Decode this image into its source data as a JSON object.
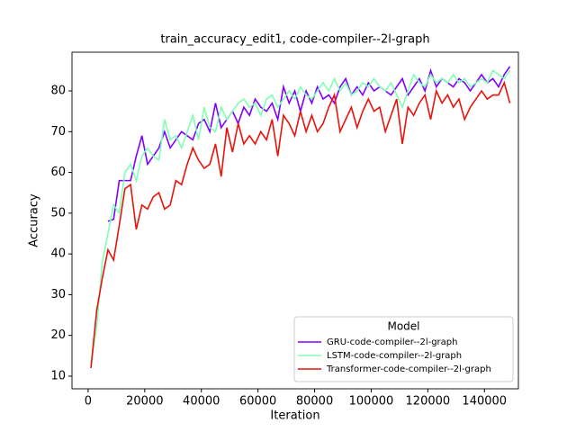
{
  "chart_data": {
    "type": "line",
    "title": "train_accuracy_edit1, code-compiler--2l-graph",
    "x_label": "Iteration",
    "y_label": "Accuracy",
    "x": [
      1000,
      3000,
      5000,
      7000,
      9000,
      11000,
      13000,
      15000,
      17000,
      19000,
      21000,
      23000,
      25000,
      27000,
      29000,
      31000,
      33000,
      35000,
      37000,
      39000,
      41000,
      43000,
      45000,
      47000,
      49000,
      51000,
      53000,
      55000,
      57000,
      59000,
      61000,
      63000,
      65000,
      67000,
      69000,
      71000,
      73000,
      75000,
      77000,
      79000,
      81000,
      83000,
      85000,
      87000,
      89000,
      91000,
      93000,
      95000,
      97000,
      99000,
      101000,
      103000,
      105000,
      107000,
      109000,
      111000,
      113000,
      115000,
      117000,
      119000,
      121000,
      123000,
      125000,
      127000,
      129000,
      131000,
      133000,
      135000,
      137000,
      139000,
      141000,
      143000,
      145000,
      147000,
      149000
    ],
    "series": [
      {
        "name": "GRU-code-compiler--2l-graph",
        "color": "#8000ff",
        "values": [
          null,
          null,
          null,
          48,
          48.5,
          58,
          58,
          58,
          64,
          69,
          62,
          64,
          66,
          70,
          66,
          68,
          70,
          69,
          68,
          72,
          73,
          70,
          77,
          71,
          73,
          75,
          72,
          76,
          74,
          78,
          76,
          75,
          77,
          73,
          81,
          77,
          80,
          75,
          80,
          77,
          81,
          78,
          79,
          77,
          81,
          83,
          79,
          81,
          79,
          82,
          80,
          81,
          80,
          79,
          81,
          83,
          79,
          81,
          83,
          80,
          85,
          81,
          83,
          82,
          81,
          83,
          82,
          80,
          82,
          84,
          82,
          83,
          81,
          84,
          86
        ]
      },
      {
        "name": "LSTM-code-compiler--2l-graph",
        "color": "#80ffb4",
        "values": [
          13,
          22,
          38,
          45,
          52,
          50,
          60,
          62,
          58,
          64,
          66,
          64,
          63,
          73,
          68,
          69,
          66,
          70,
          74,
          68,
          76,
          71,
          70,
          76,
          73,
          75,
          77,
          78,
          76,
          77,
          74,
          78,
          79,
          76,
          78,
          80,
          78,
          81,
          79,
          78,
          80,
          82,
          80,
          83,
          80,
          82,
          79,
          80,
          82,
          81,
          83,
          81,
          80,
          82,
          79,
          76,
          80,
          84,
          82,
          81,
          84,
          82,
          83,
          82,
          84,
          82,
          83,
          81,
          82,
          83,
          82,
          85,
          84,
          83,
          85
        ]
      },
      {
        "name": "Transformer-code-compiler--2l-graph",
        "color": "#e8140c",
        "values": [
          12,
          26,
          34,
          41,
          38.5,
          47,
          56,
          57,
          46,
          52,
          51,
          54,
          55,
          51,
          52,
          58,
          57,
          62,
          66,
          63,
          61,
          62,
          67,
          59,
          71,
          65,
          72,
          67,
          69,
          67,
          70,
          68,
          73,
          64,
          74,
          72,
          69,
          75,
          70,
          74,
          70,
          72,
          76,
          79,
          70,
          73,
          76,
          71,
          75,
          78,
          75,
          76,
          70,
          74,
          78,
          67,
          76,
          74,
          77,
          79,
          73,
          80,
          77,
          79,
          76,
          78,
          73,
          76,
          78,
          80,
          78,
          79,
          79,
          82,
          77
        ]
      }
    ],
    "xlim": [
      -5700,
      152000
    ],
    "ylim": [
      6.9,
      89.5
    ],
    "xticks": [
      0,
      20000,
      40000,
      60000,
      80000,
      100000,
      120000,
      140000
    ],
    "yticks": [
      10,
      20,
      30,
      40,
      50,
      60,
      70,
      80
    ],
    "legend_loc": "lower right",
    "legend_title": "Model"
  }
}
